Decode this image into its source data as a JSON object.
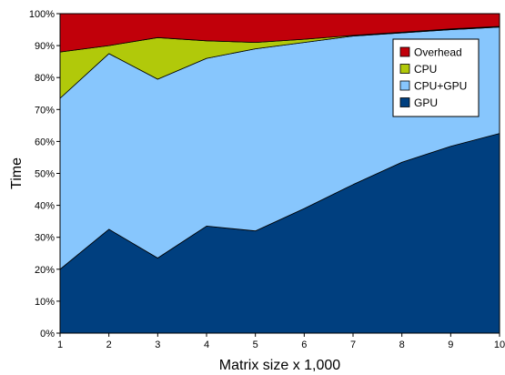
{
  "chart_data": {
    "type": "area",
    "stacked": true,
    "x": [
      1,
      2,
      3,
      4,
      5,
      6,
      7,
      8,
      9,
      10
    ],
    "xlabel": "Matrix size x 1,000",
    "ylabel": "Time",
    "ylim": [
      0,
      100
    ],
    "y_ticks": [
      "0%",
      "10%",
      "20%",
      "30%",
      "40%",
      "50%",
      "60%",
      "70%",
      "80%",
      "90%",
      "100%"
    ],
    "x_ticks": [
      "1",
      "2",
      "3",
      "4",
      "5",
      "6",
      "7",
      "8",
      "9",
      "10"
    ],
    "grid": false,
    "legend_position": "top-right",
    "series": [
      {
        "name": "GPU",
        "color": "#003f7f",
        "values": [
          20,
          32.5,
          23.5,
          33.5,
          32,
          39,
          46.5,
          53.5,
          58.5,
          62.5
        ]
      },
      {
        "name": "CPU+GPU",
        "color": "#87c6fd",
        "values": [
          53.5,
          55,
          56,
          52.5,
          57,
          52,
          46.5,
          40.5,
          36.5,
          33.3
        ]
      },
      {
        "name": "CPU",
        "color": "#b1c90a",
        "values": [
          14.5,
          2.5,
          13,
          5.5,
          2,
          1,
          0.2,
          0.2,
          0.2,
          0.2
        ]
      },
      {
        "name": "Overhead",
        "color": "#c1000a",
        "values": [
          12,
          10,
          7.5,
          8.5,
          9,
          8,
          6.8,
          5.8,
          4.8,
          4
        ]
      }
    ],
    "legend_order": [
      "Overhead",
      "CPU",
      "CPU+GPU",
      "GPU"
    ]
  }
}
